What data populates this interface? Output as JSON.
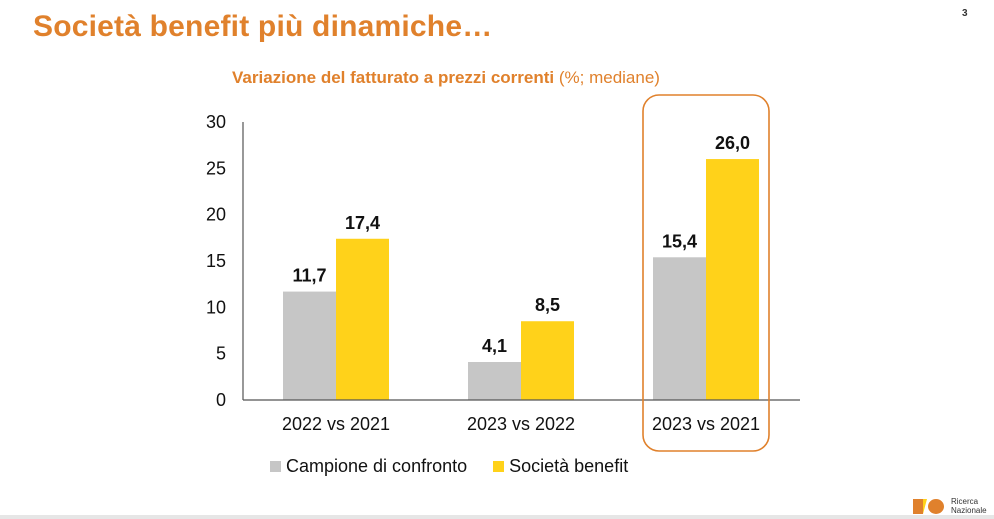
{
  "slide": {
    "title": "Società benefit più dinamiche…",
    "page_number": "3",
    "subtitle_bold": "Variazione del fatturato a prezzi correnti",
    "subtitle_normal": " (%; mediane)",
    "logo": {
      "line1": "Ricerca",
      "line2": "Nazionale",
      "icon": "ricerca-nazionale-logo-icon"
    }
  },
  "colors": {
    "accent": "#e0812c",
    "series_comparison": "#c6c6c6",
    "series_benefit": "#ffd21a",
    "axis": "#555555",
    "highlight_box": "#e0812c"
  },
  "chart_data": {
    "type": "bar",
    "title": "Variazione del fatturato a prezzi correnti (%; mediane)",
    "xlabel": "",
    "ylabel": "",
    "categories": [
      "2022 vs 2021",
      "2023 vs 2022",
      "2023 vs 2021"
    ],
    "series": [
      {
        "name": "Campione di confronto",
        "values": [
          11.7,
          4.1,
          15.4
        ],
        "labels": [
          "11,7",
          "4,1",
          "15,4"
        ]
      },
      {
        "name": "Società benefit",
        "values": [
          17.4,
          8.5,
          26.0
        ],
        "labels": [
          "17,4",
          "8,5",
          "26,0"
        ]
      }
    ],
    "ylim": [
      0,
      30
    ],
    "yticks": [
      0,
      5,
      10,
      15,
      20,
      25,
      30
    ],
    "grid": false,
    "legend": "bottom",
    "highlighted_category": "2023 vs 2021"
  }
}
